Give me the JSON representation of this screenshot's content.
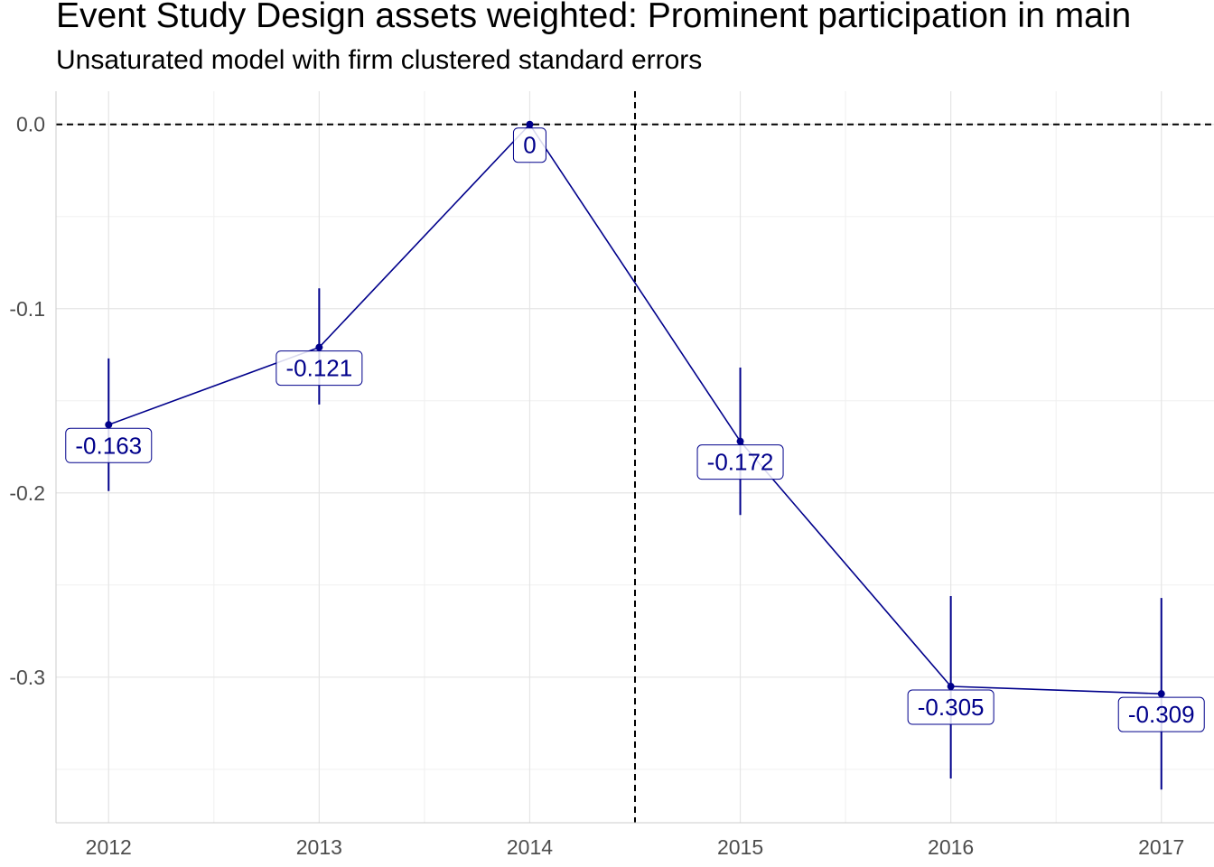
{
  "title": "Event Study Design assets weighted: Prominent participation in main",
  "subtitle": "Unsaturated model with firm clustered standard errors",
  "chart_data": {
    "type": "line",
    "title": "Event Study Design assets weighted: Prominent participation in main",
    "subtitle": "Unsaturated model with firm clustered standard errors",
    "xlabel": "",
    "ylabel": "",
    "x": [
      2012,
      2013,
      2014,
      2015,
      2016,
      2017
    ],
    "x_tick_labels": [
      "2012",
      "2013",
      "2014",
      "2015",
      "2016",
      "2017"
    ],
    "y_ticks": [
      0.0,
      -0.1,
      -0.2,
      -0.3
    ],
    "y_tick_labels": [
      "0.0",
      "-0.1",
      "-0.2",
      "-0.3"
    ],
    "xlim": [
      2011.75,
      2017.25
    ],
    "ylim": [
      -0.379,
      0.018
    ],
    "series": [
      {
        "values": [
          -0.163,
          -0.121,
          0,
          -0.172,
          -0.305,
          -0.309
        ],
        "labels": [
          "-0.163",
          "-0.121",
          "0",
          "-0.172",
          "-0.305",
          "-0.309"
        ],
        "ci_lower": [
          -0.199,
          -0.152,
          0,
          -0.212,
          -0.355,
          -0.361
        ],
        "ci_upper": [
          -0.127,
          -0.089,
          0,
          -0.132,
          -0.256,
          -0.257
        ]
      }
    ],
    "reference_lines": {
      "horizontal_y": 0,
      "vertical_x": 2014.5,
      "style": "dashed"
    },
    "grid": true,
    "legend": "none",
    "colors": {
      "series": "#00008b",
      "reference": "#000000",
      "grid": "#e5e5e5",
      "axis_text": "#4d4d4d"
    }
  }
}
